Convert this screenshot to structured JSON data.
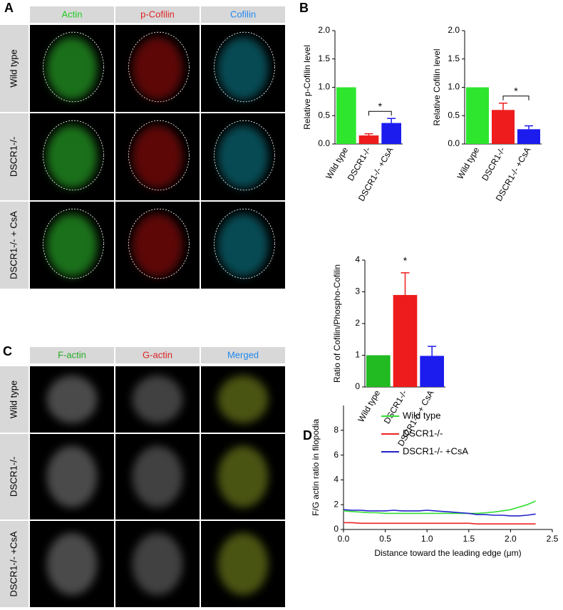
{
  "panels": {
    "A": {
      "label": "A",
      "columns": [
        "Actin",
        "p-Cofilin",
        "Cofilin"
      ],
      "rows": [
        "Wild type",
        "DSCR1-/-",
        "DSCR1-/- + CsA"
      ]
    },
    "B": {
      "label": "B"
    },
    "C": {
      "label": "C",
      "columns": [
        "F-actin",
        "G-actin",
        "Merged"
      ],
      "rows": [
        "Wild type",
        "DSCR1-/-",
        "DSCR1-/- +CsA"
      ]
    },
    "D": {
      "label": "D"
    }
  },
  "chart_data": [
    {
      "type": "bar",
      "y_label": "Relative p-Cofilin level",
      "categories": [
        "Wild type",
        "DSCR1-/-",
        "DSCR1-/- +CsA"
      ],
      "values": [
        1.0,
        0.15,
        0.37
      ],
      "errors": [
        null,
        0.03,
        0.08
      ],
      "colors": [
        "#2ee62e",
        "#ee1c1c",
        "#1c1cee"
      ],
      "ylim": [
        0,
        2
      ],
      "yticks": [
        {
          "value": 0,
          "label": "0.0"
        },
        0.5,
        {
          "value": 1,
          "label": "1.0"
        },
        1.5,
        {
          "value": 2,
          "label": "2.0"
        }
      ],
      "significance": "*"
    },
    {
      "type": "bar",
      "y_label": "Relative Cofilin level",
      "categories": [
        "Wild type",
        "DSCR1-/-",
        "DSCR1-/- +CsA"
      ],
      "values": [
        1.0,
        0.6,
        0.26
      ],
      "errors": [
        null,
        0.12,
        0.06
      ],
      "colors": [
        "#2ee62e",
        "#ee1c1c",
        "#1c1cee"
      ],
      "ylim": [
        0,
        2
      ],
      "yticks": [
        {
          "value": 0,
          "label": "0.0"
        },
        0.5,
        {
          "value": 1,
          "label": "1.0"
        },
        1.5,
        {
          "value": 2,
          "label": "2.0"
        }
      ],
      "significance": "*"
    },
    {
      "type": "bar",
      "y_label": "Ratio of Cofilin/Phospho-Cofilin",
      "categories": [
        "Wild type",
        "DSCR1-/-",
        "DSCR1-/- + CsA"
      ],
      "values": [
        1.0,
        2.9,
        0.98
      ],
      "errors": [
        null,
        0.7,
        0.3
      ],
      "colors": [
        "#22bb22",
        "#ee1c1c",
        "#1c1cee"
      ],
      "ylim": [
        0,
        4
      ],
      "yticks": [
        0,
        1,
        2,
        3,
        4
      ],
      "significance": "*"
    },
    {
      "type": "line",
      "x_label": "Distance toward the leading edge (μm)",
      "y_label": "F/G actin ratio in filopodia",
      "x": [
        0,
        0.1,
        0.2,
        0.3,
        0.4,
        0.5,
        0.6,
        0.7,
        0.8,
        0.9,
        1.0,
        1.1,
        1.2,
        1.3,
        1.4,
        1.5,
        1.6,
        1.7,
        1.8,
        1.9,
        2.0,
        2.1,
        2.2,
        2.3
      ],
      "series": [
        {
          "name": "Wild type",
          "color": "#33dd33",
          "values": [
            1.5,
            1.45,
            1.4,
            1.35,
            1.35,
            1.3,
            1.3,
            1.3,
            1.3,
            1.3,
            1.3,
            1.3,
            1.3,
            1.3,
            1.3,
            1.3,
            1.3,
            1.35,
            1.4,
            1.5,
            1.6,
            1.8,
            2.0,
            2.3
          ]
        },
        {
          "name": "DSCR1-/-",
          "color": "#ee2222",
          "values": [
            0.55,
            0.55,
            0.5,
            0.5,
            0.5,
            0.5,
            0.5,
            0.5,
            0.5,
            0.5,
            0.5,
            0.5,
            0.5,
            0.5,
            0.5,
            0.5,
            0.45,
            0.45,
            0.45,
            0.45,
            0.45,
            0.45,
            0.45,
            0.45
          ]
        },
        {
          "name": "DSCR1-/- +CsA",
          "color": "#2222cc",
          "values": [
            1.6,
            1.55,
            1.55,
            1.5,
            1.5,
            1.5,
            1.55,
            1.5,
            1.5,
            1.5,
            1.55,
            1.5,
            1.45,
            1.4,
            1.35,
            1.3,
            1.2,
            1.2,
            1.15,
            1.15,
            1.1,
            1.1,
            1.15,
            1.25
          ]
        }
      ],
      "xlim": [
        0,
        2.5
      ],
      "xticks": [
        {
          "value": 0,
          "label": "0.0"
        },
        0.5,
        {
          "value": 1,
          "label": "1.0"
        },
        1.5,
        {
          "value": 2,
          "label": "2.0"
        },
        2.5
      ],
      "ylim": [
        0,
        10
      ],
      "yticks": [
        0,
        2,
        4,
        6,
        8
      ]
    }
  ]
}
